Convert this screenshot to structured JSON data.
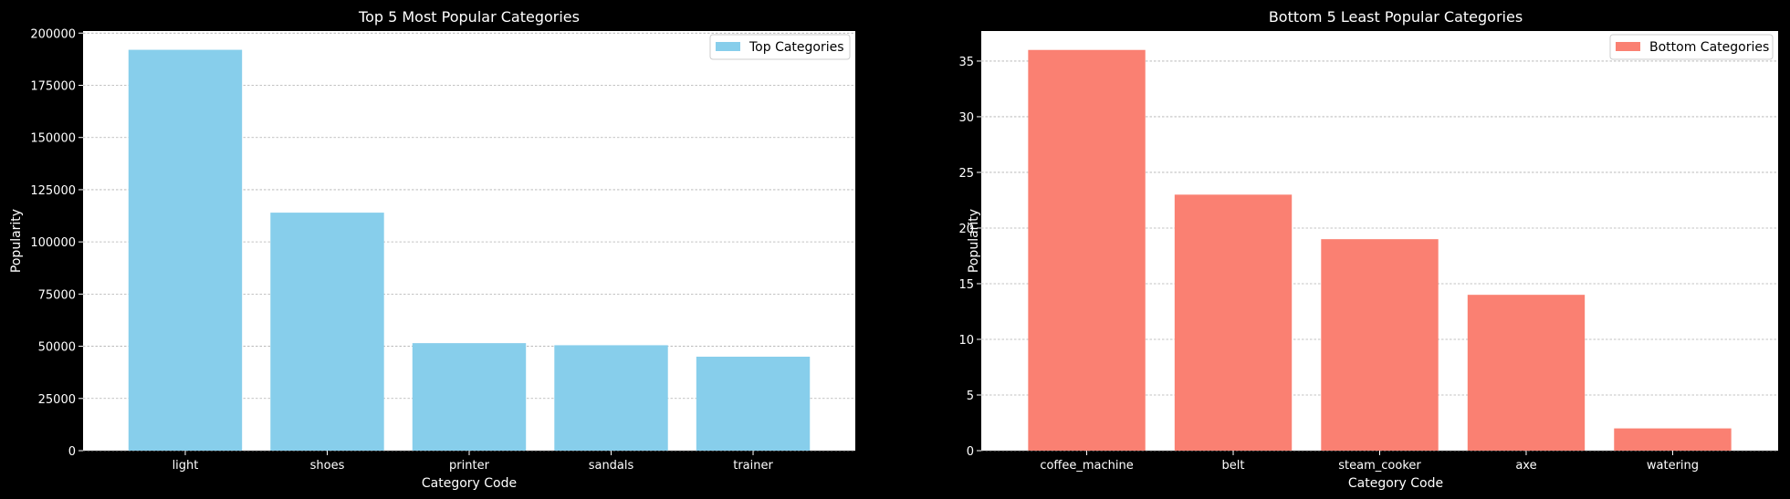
{
  "colors": {
    "background": "#000000",
    "plot_background": "#ffffff",
    "text": "#ffffff",
    "grid": "#b0b0b0"
  },
  "chart_data": [
    {
      "type": "bar",
      "title": "Top 5 Most Popular Categories",
      "xlabel": "Category Code",
      "ylabel": "Popularity",
      "categories": [
        "light",
        "shoes",
        "printer",
        "sandals",
        "trainer"
      ],
      "series": [
        {
          "name": "Top Categories",
          "values": [
            192000,
            114000,
            51500,
            50500,
            45000
          ],
          "color": "#87ceeb"
        }
      ],
      "ylim": [
        0,
        201000
      ],
      "yticks": [
        0,
        25000,
        50000,
        75000,
        100000,
        125000,
        150000,
        175000,
        200000
      ],
      "ytick_labels": [
        "0",
        "25000",
        "50000",
        "75000",
        "100000",
        "125000",
        "150000",
        "175000",
        "200000"
      ],
      "grid": "y-dashed",
      "legend": "top-right"
    },
    {
      "type": "bar",
      "title": "Bottom 5 Least Popular Categories",
      "xlabel": "Category Code",
      "ylabel": "Popularity",
      "categories": [
        "coffee_machine",
        "belt",
        "steam_cooker",
        "axe",
        "watering"
      ],
      "series": [
        {
          "name": "Bottom Categories",
          "values": [
            36,
            23,
            19,
            14,
            2
          ],
          "color": "#fa8072"
        }
      ],
      "ylim": [
        0,
        37.7
      ],
      "yticks": [
        0,
        5,
        10,
        15,
        20,
        25,
        30,
        35
      ],
      "ytick_labels": [
        "0",
        "5",
        "10",
        "15",
        "20",
        "25",
        "30",
        "35"
      ],
      "grid": "y-dashed",
      "legend": "top-right"
    }
  ]
}
